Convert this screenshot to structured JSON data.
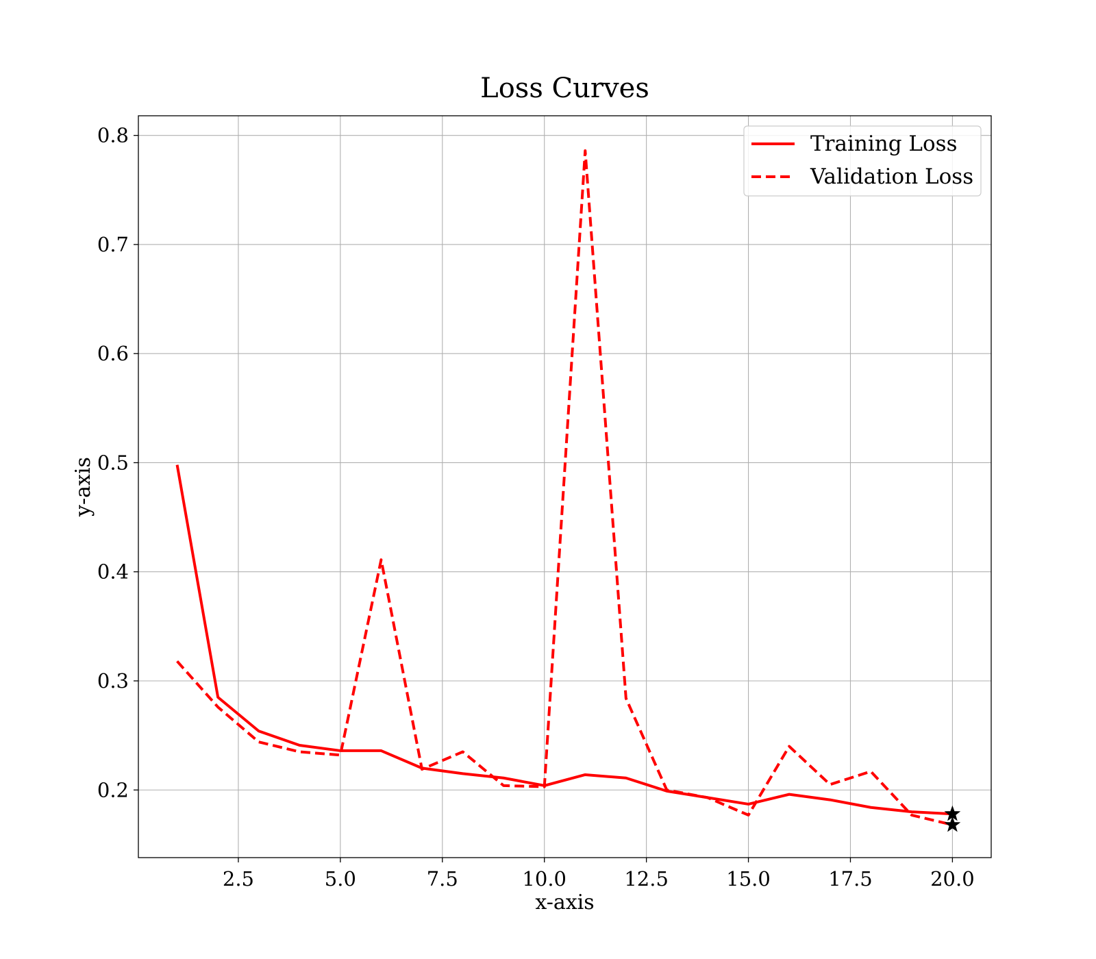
{
  "chart_data": {
    "type": "line",
    "title": "Loss Curves",
    "xlabel": "x-axis",
    "ylabel": "y-axis",
    "xlim": [
      0.05,
      20.95
    ],
    "ylim": [
      0.138,
      0.818
    ],
    "xticks": [
      2.5,
      5.0,
      7.5,
      10.0,
      12.5,
      15.0,
      17.5,
      20.0
    ],
    "xtick_labels": [
      "2.5",
      "5.0",
      "7.5",
      "10.0",
      "12.5",
      "15.0",
      "17.5",
      "20.0"
    ],
    "yticks": [
      0.2,
      0.3,
      0.4,
      0.5,
      0.6,
      0.7,
      0.8
    ],
    "ytick_labels": [
      "0.2",
      "0.3",
      "0.4",
      "0.5",
      "0.6",
      "0.7",
      "0.8"
    ],
    "grid": true,
    "legend_position": "top-right",
    "x": [
      1,
      2,
      3,
      4,
      5,
      6,
      7,
      8,
      9,
      10,
      11,
      12,
      13,
      14,
      15,
      16,
      17,
      18,
      19,
      20
    ],
    "series": [
      {
        "name": "Training Loss",
        "style": "solid",
        "color": "#ff0000",
        "values": [
          0.498,
          0.285,
          0.254,
          0.241,
          0.236,
          0.236,
          0.22,
          0.215,
          0.211,
          0.204,
          0.214,
          0.211,
          0.199,
          0.193,
          0.187,
          0.196,
          0.191,
          0.184,
          0.18,
          0.178
        ]
      },
      {
        "name": "Validation Loss",
        "style": "dashed",
        "color": "#ff0000",
        "values": [
          0.318,
          0.276,
          0.244,
          0.235,
          0.232,
          0.411,
          0.219,
          0.235,
          0.204,
          0.203,
          0.786,
          0.284,
          0.2,
          0.193,
          0.177,
          0.24,
          0.205,
          0.217,
          0.177,
          0.168
        ]
      }
    ],
    "markers": [
      {
        "series": "Training Loss",
        "x": 20,
        "y": 0.178,
        "symbol": "star",
        "color": "#000000"
      },
      {
        "series": "Validation Loss",
        "x": 20,
        "y": 0.168,
        "symbol": "star",
        "color": "#000000"
      }
    ]
  }
}
